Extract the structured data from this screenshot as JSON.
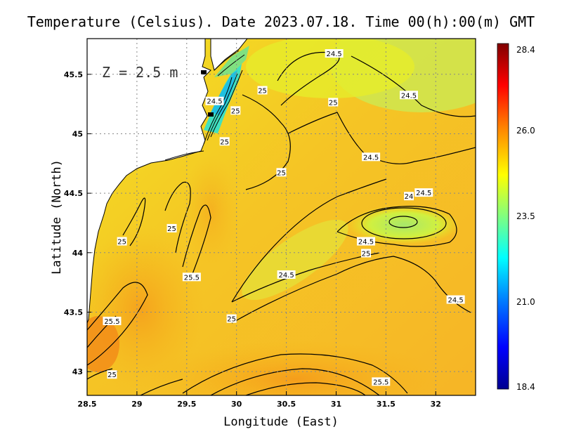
{
  "title": "Temperature (Celsius). Date 2023.07.18. Time 00(h):00(m) GMT",
  "depth_label": "Z = 2.5 m",
  "x_axis": {
    "label": "Longitude (East)",
    "ticks": [
      "28.5",
      "29",
      "29.5",
      "30",
      "30.5",
      "31",
      "31.5",
      "32"
    ],
    "tick_values": [
      28.5,
      29,
      29.5,
      30,
      30.5,
      31,
      31.5,
      32
    ],
    "range": [
      28.5,
      32.4
    ]
  },
  "y_axis": {
    "label": "Latitude (North)",
    "ticks": [
      "43",
      "43.5",
      "44",
      "44.5",
      "45",
      "45.5"
    ],
    "tick_values": [
      43,
      43.5,
      44,
      44.5,
      45,
      45.5
    ],
    "range": [
      42.8,
      45.8
    ]
  },
  "colorbar": {
    "max": "28.4",
    "upper": "26.0",
    "mid": "23.5",
    "lower": "21.0",
    "min": "18.4",
    "colors": [
      "#00008f",
      "#0000ff",
      "#0080ff",
      "#00ffff",
      "#80ff80",
      "#ffff00",
      "#ff8000",
      "#ff0000",
      "#800000"
    ]
  },
  "contour_labels": [
    {
      "text": "24.5",
      "lon": 31.35,
      "lat": 44.8
    },
    {
      "text": "24.5",
      "lon": 31.88,
      "lat": 44.5
    },
    {
      "text": "24",
      "lon": 31.73,
      "lat": 44.47
    },
    {
      "text": "24.5",
      "lon": 31.3,
      "lat": 44.09
    },
    {
      "text": "25",
      "lon": 31.3,
      "lat": 43.99
    },
    {
      "text": "24.5",
      "lon": 30.98,
      "lat": 45.67
    },
    {
      "text": "24.5",
      "lon": 31.73,
      "lat": 45.32
    },
    {
      "text": "25",
      "lon": 30.97,
      "lat": 45.26
    },
    {
      "text": "25",
      "lon": 30.26,
      "lat": 45.36
    },
    {
      "text": "25",
      "lon": 29.99,
      "lat": 45.19
    },
    {
      "text": "24.5",
      "lon": 29.78,
      "lat": 45.27
    },
    {
      "text": "25",
      "lon": 29.88,
      "lat": 44.93
    },
    {
      "text": "25",
      "lon": 30.45,
      "lat": 44.67
    },
    {
      "text": "25",
      "lon": 29.35,
      "lat": 44.2
    },
    {
      "text": "25",
      "lon": 28.85,
      "lat": 44.09
    },
    {
      "text": "25.5",
      "lon": 29.55,
      "lat": 43.79
    },
    {
      "text": "24.5",
      "lon": 30.5,
      "lat": 43.81
    },
    {
      "text": "24.5",
      "lon": 32.2,
      "lat": 43.6
    },
    {
      "text": "25",
      "lon": 29.95,
      "lat": 43.44
    },
    {
      "text": "25.5",
      "lon": 28.75,
      "lat": 43.42
    },
    {
      "text": "25",
      "lon": 28.75,
      "lat": 42.97
    },
    {
      "text": "25.5",
      "lon": 31.45,
      "lat": 42.91
    }
  ]
}
